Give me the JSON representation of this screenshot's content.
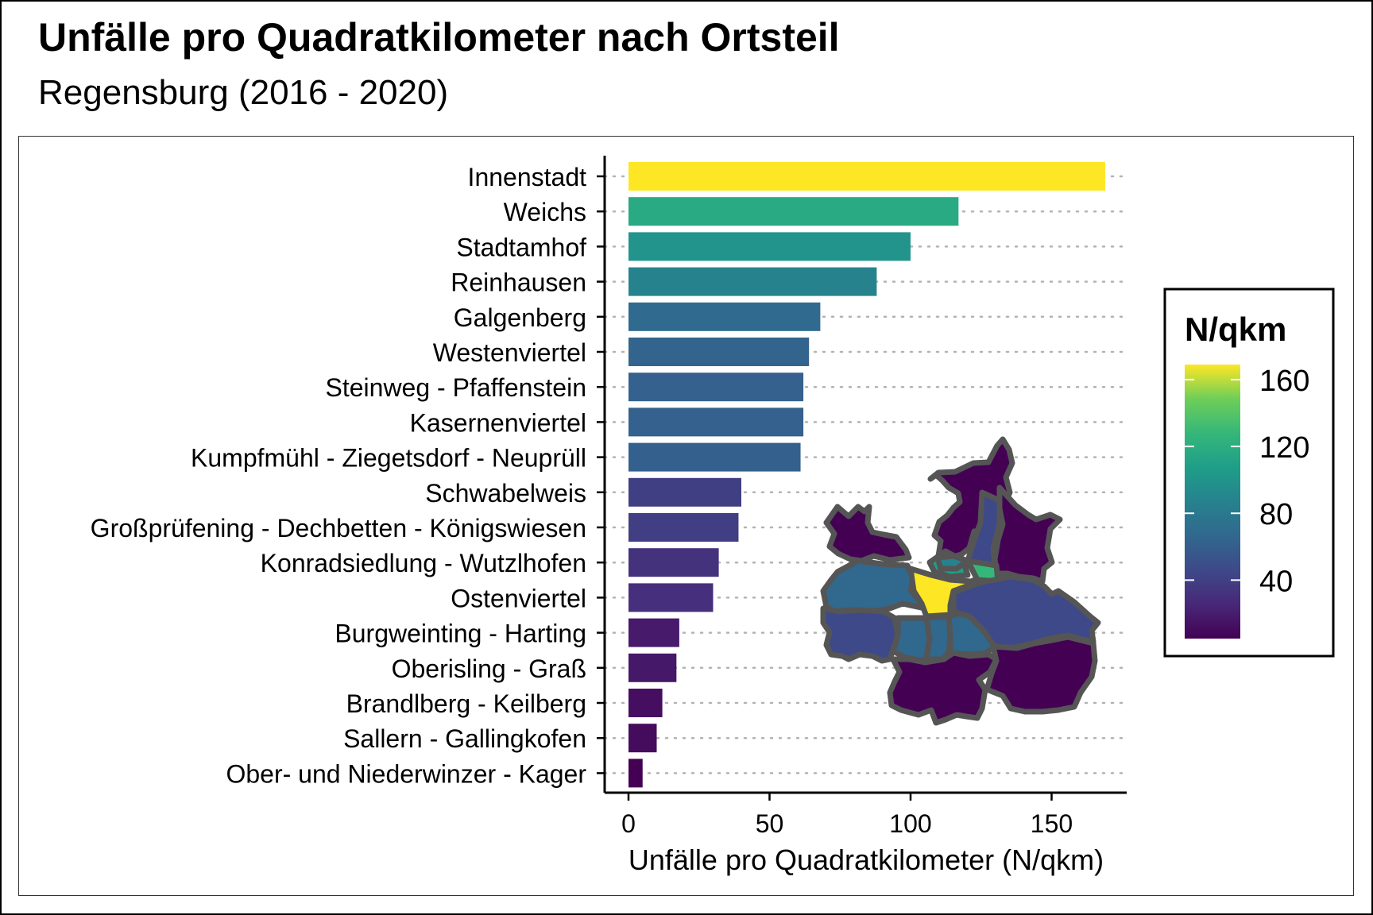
{
  "title": "Unfälle pro Quadratkilometer nach Ortsteil",
  "subtitle": "Regensburg (2016 - 2020)",
  "chart_data": {
    "type": "bar",
    "orientation": "horizontal",
    "xlabel": "Unfälle pro Quadratkilometer (N/qkm)",
    "ylabel": "",
    "xlim": [
      0,
      175
    ],
    "x_ticks": [
      0,
      50,
      100,
      150
    ],
    "grid": "dotted horizontal",
    "categories": [
      "Innenstadt",
      "Weichs",
      "Stadtamhof",
      "Reinhausen",
      "Galgenberg",
      "Westenviertel",
      "Steinweg - Pfaffenstein",
      "Kasernenviertel",
      "Kumpfmühl - Ziegetsdorf - Neuprüll",
      "Schwabelweis",
      "Großprüfening - Dechbetten - Königswiesen",
      "Konradsiedlung - Wutzlhofen",
      "Ostenviertel",
      "Burgweinting - Harting",
      "Oberisling - Graß",
      "Brandlberg - Keilberg",
      "Sallern - Gallingkofen",
      "Ober- und Niederwinzer - Kager"
    ],
    "values": [
      169,
      117,
      100,
      88,
      68,
      64,
      62,
      62,
      61,
      40,
      39,
      32,
      30,
      18,
      17,
      12,
      10,
      5
    ],
    "legend": {
      "title": "N/qkm",
      "position": "right",
      "ticks": [
        160,
        120,
        80,
        40
      ],
      "range": [
        5,
        169
      ],
      "palette": "viridis"
    },
    "inset_map": {
      "description_colors": [
        "#440154",
        "#482878",
        "#3e4989",
        "#31688e",
        "#26828e",
        "#1f9e89",
        "#35b779",
        "#6ece58",
        "#fde725"
      ]
    }
  }
}
